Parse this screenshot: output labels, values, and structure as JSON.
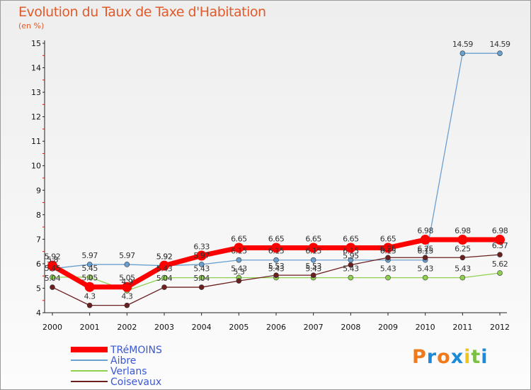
{
  "title": "Evolution du Taux de Taxe d'Habitation",
  "subtitle": "(en %)",
  "logo": {
    "letters": [
      "P",
      "r",
      "o",
      "x",
      "i",
      "t",
      "i"
    ],
    "colors": [
      "#f07a1a",
      "#1c8ad6",
      "#f07a1a",
      "#1c8ad6",
      "#f0c419",
      "#7ac143",
      "#1c8ad6"
    ]
  },
  "chart_data": {
    "type": "line",
    "title": "Evolution du Taux de Taxe d'Habitation",
    "ylabel": "(en %)",
    "x": [
      "2000",
      "2001",
      "2002",
      "2003",
      "2004",
      "2005",
      "2006",
      "2007",
      "2008",
      "2009",
      "2010",
      "2011",
      "2012"
    ],
    "ylim": [
      4,
      15
    ],
    "yticks": [
      "4",
      "5",
      "6",
      "7",
      "8",
      "9",
      "10",
      "11",
      "12",
      "13",
      "14",
      "15"
    ],
    "grid": false,
    "legend": "bottom-left",
    "series": [
      {
        "name": "Aibre",
        "color": "#6aa0d0",
        "values": [
          5.8,
          5.97,
          5.97,
          5.92,
          5.97,
          6.15,
          6.15,
          6.15,
          6.15,
          6.15,
          6.15,
          14.59,
          14.59
        ],
        "labels": [
          "5.8",
          "5.97",
          "5.97",
          "5.92",
          "5.97",
          "6.15",
          "6.15",
          "6.15",
          "6.15",
          "6.15",
          "6.15",
          "14.59",
          "14.59"
        ]
      },
      {
        "name": "Verlans",
        "color": "#8fd14f",
        "values": [
          5.45,
          5.45,
          4.9,
          5.43,
          5.43,
          5.43,
          5.43,
          5.43,
          5.43,
          5.43,
          5.43,
          5.43,
          5.62
        ],
        "labels": [
          "5.45",
          "5.45",
          "4.9",
          "5.43",
          "5.43",
          "5.43",
          "5.43",
          "5.43",
          "5.43",
          "5.43",
          "5.43",
          "5.43",
          "5.62"
        ]
      },
      {
        "name": "Coisevaux",
        "color": "#6b1f1f",
        "values": [
          5.04,
          4.3,
          4.3,
          5.04,
          5.04,
          5.3,
          5.53,
          5.53,
          5.95,
          6.25,
          6.25,
          6.25,
          6.37
        ],
        "labels": [
          "5.04",
          "4.3",
          "4.3",
          "5.04",
          "5.04",
          "5.3",
          "5.53",
          "5.53",
          "5.95",
          "6.25",
          "6.25",
          "6.25",
          "6.37"
        ]
      },
      {
        "name": "TRéMOINS",
        "color": "#ff0000",
        "values": [
          5.92,
          5.05,
          5.05,
          5.92,
          6.33,
          6.65,
          6.65,
          6.65,
          6.65,
          6.65,
          6.98,
          6.98,
          6.98
        ],
        "labels": [
          "5.92",
          "5.05",
          "5.05",
          "5.92",
          "6.33",
          "6.65",
          "6.65",
          "6.65",
          "6.65",
          "6.65",
          "6.98",
          "6.98",
          "6.98"
        ]
      }
    ],
    "legend_order": [
      "TRéMOINS",
      "Aibre",
      "Verlans",
      "Coisevaux"
    ]
  }
}
